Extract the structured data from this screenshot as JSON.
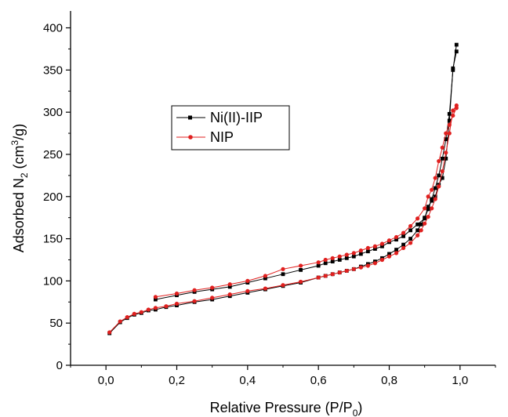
{
  "chart_data": {
    "type": "line",
    "title": "",
    "xlabel": {
      "main": "Relative Pressure (P/P",
      "sub": "0",
      "tail": ")"
    },
    "ylabel": {
      "main": "Adsorbed N",
      "sub": "2",
      "mid": " (cm",
      "sup": "3",
      "tail": "/g)"
    },
    "xlim": [
      -0.1,
      1.1
    ],
    "ylim": [
      0,
      420
    ],
    "x_ticks": [
      0.0,
      0.2,
      0.4,
      0.6,
      0.8,
      1.0
    ],
    "x_tick_labels": [
      "0,0",
      "0,2",
      "0,4",
      "0,6",
      "0,8",
      "1,0"
    ],
    "y_ticks": [
      0,
      50,
      100,
      150,
      200,
      250,
      300,
      350,
      400
    ],
    "y_tick_labels": [
      "0",
      "50",
      "100",
      "150",
      "200",
      "250",
      "300",
      "350",
      "400"
    ],
    "grid": false,
    "legend_position": "upper-left",
    "series": [
      {
        "name": "Ni(II)-IIP",
        "color": "#000000",
        "marker": "square",
        "adsorption": {
          "x": [
            0.01,
            0.04,
            0.06,
            0.08,
            0.1,
            0.12,
            0.14,
            0.17,
            0.2,
            0.25,
            0.3,
            0.35,
            0.4,
            0.45,
            0.5,
            0.55,
            0.6,
            0.62,
            0.64,
            0.66,
            0.68,
            0.7,
            0.72,
            0.74,
            0.76,
            0.78,
            0.8,
            0.82,
            0.84,
            0.86,
            0.88,
            0.89,
            0.9,
            0.91,
            0.92,
            0.93,
            0.94,
            0.95,
            0.96,
            0.97,
            0.98,
            0.99
          ],
          "y": [
            38,
            51,
            56,
            60,
            62,
            65,
            66,
            69,
            71,
            75,
            78,
            82,
            86,
            90,
            94,
            98,
            104,
            106,
            108,
            110,
            112,
            114,
            117,
            120,
            123,
            127,
            132,
            137,
            143,
            150,
            160,
            167,
            175,
            185,
            197,
            210,
            225,
            245,
            268,
            298,
            350,
            380
          ]
        },
        "desorption": {
          "x": [
            0.99,
            0.98,
            0.97,
            0.96,
            0.95,
            0.94,
            0.93,
            0.92,
            0.91,
            0.9,
            0.88,
            0.86,
            0.84,
            0.82,
            0.8,
            0.78,
            0.76,
            0.74,
            0.72,
            0.7,
            0.68,
            0.66,
            0.64,
            0.62,
            0.6,
            0.55,
            0.5,
            0.45,
            0.4,
            0.35,
            0.3,
            0.25,
            0.2,
            0.14
          ],
          "y": [
            372,
            352,
            290,
            245,
            222,
            214,
            200,
            195,
            188,
            174,
            167,
            160,
            153,
            149,
            146,
            141,
            138,
            135,
            132,
            129,
            127,
            125,
            123,
            121,
            118,
            113,
            108,
            103,
            98,
            93,
            90,
            87,
            83,
            78
          ]
        }
      },
      {
        "name": "NIP",
        "color": "#e0201f",
        "marker": "circle",
        "adsorption": {
          "x": [
            0.01,
            0.04,
            0.06,
            0.08,
            0.1,
            0.12,
            0.14,
            0.17,
            0.2,
            0.25,
            0.3,
            0.35,
            0.4,
            0.45,
            0.5,
            0.55,
            0.6,
            0.62,
            0.64,
            0.66,
            0.68,
            0.7,
            0.72,
            0.74,
            0.76,
            0.78,
            0.8,
            0.82,
            0.84,
            0.86,
            0.88,
            0.89,
            0.9,
            0.91,
            0.92,
            0.93,
            0.94,
            0.95,
            0.96,
            0.97,
            0.98,
            0.99
          ],
          "y": [
            39,
            52,
            57,
            61,
            63,
            66,
            68,
            70,
            73,
            76,
            80,
            84,
            88,
            91,
            95,
            99,
            104,
            106,
            108,
            110,
            112,
            114,
            116,
            118,
            121,
            125,
            129,
            133,
            139,
            145,
            154,
            160,
            168,
            176,
            186,
            197,
            212,
            230,
            252,
            275,
            302,
            308
          ]
        },
        "desorption": {
          "x": [
            0.99,
            0.98,
            0.97,
            0.96,
            0.95,
            0.94,
            0.93,
            0.92,
            0.91,
            0.9,
            0.88,
            0.86,
            0.84,
            0.82,
            0.8,
            0.78,
            0.76,
            0.74,
            0.72,
            0.7,
            0.68,
            0.66,
            0.64,
            0.62,
            0.6,
            0.55,
            0.5,
            0.45,
            0.4,
            0.35,
            0.3,
            0.25,
            0.2,
            0.14
          ],
          "y": [
            305,
            296,
            285,
            275,
            258,
            242,
            222,
            208,
            200,
            186,
            174,
            165,
            157,
            152,
            148,
            144,
            141,
            139,
            136,
            133,
            131,
            129,
            127,
            125,
            122,
            118,
            114,
            106,
            100,
            96,
            92,
            89,
            85,
            81
          ]
        }
      }
    ]
  }
}
